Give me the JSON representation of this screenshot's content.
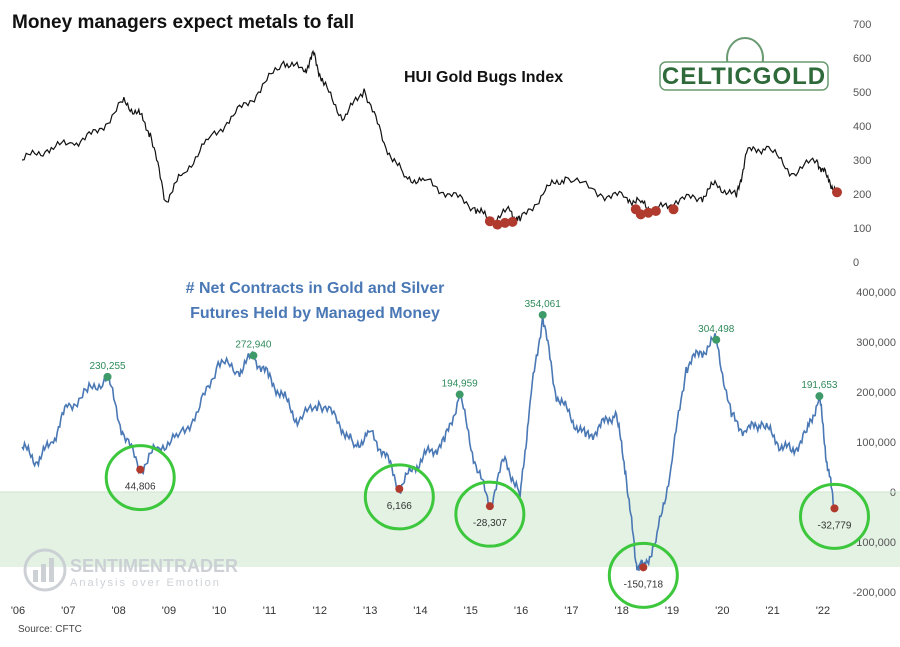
{
  "header": {
    "title": "Money managers expect metals to fall",
    "source": "Source: CFTC"
  },
  "logo": {
    "text": "CELTICGOLD"
  },
  "watermark": {
    "main": "SENTIMENTRADER",
    "sub": "Analysis over Emotion"
  },
  "colors": {
    "hui_line": "#111111",
    "net_line": "#4a78b5",
    "high_marker": "#3f9a6a",
    "low_marker": "#b03a2e",
    "highlight_ring": "#3cc73c",
    "band": "#e3f2e3"
  },
  "chart_data": [
    {
      "type": "line",
      "title": "HUI Gold Bugs Index",
      "ylim": [
        0,
        700
      ],
      "yticks": [
        "700",
        "600",
        "500",
        "400",
        "300",
        "200",
        "100",
        "0"
      ],
      "x": [
        2006.0,
        2006.5,
        2007.0,
        2007.5,
        2008.0,
        2008.3,
        2008.55,
        2008.85,
        2009.2,
        2009.7,
        2010.2,
        2010.7,
        2011.2,
        2011.6,
        2011.8,
        2012.0,
        2012.4,
        2012.8,
        2013.2,
        2013.6,
        2014.0,
        2014.5,
        2015.0,
        2015.3,
        2015.7,
        2015.9,
        2016.4,
        2016.8,
        2017.5,
        2018.0,
        2018.3,
        2018.6,
        2019.0,
        2019.5,
        2019.8,
        2020.2,
        2020.4,
        2020.8,
        2021.3,
        2021.8,
        2022.0,
        2022.2
      ],
      "values": [
        300,
        330,
        350,
        380,
        470,
        440,
        380,
        180,
        260,
        360,
        430,
        500,
        590,
        560,
        610,
        520,
        420,
        510,
        350,
        250,
        240,
        200,
        160,
        120,
        150,
        120,
        210,
        250,
        200,
        190,
        175,
        150,
        180,
        190,
        230,
        190,
        320,
        340,
        260,
        300,
        250,
        205
      ],
      "highlight_points": [
        {
          "x": 2015.3,
          "y": 120
        },
        {
          "x": 2015.45,
          "y": 110
        },
        {
          "x": 2015.6,
          "y": 115
        },
        {
          "x": 2015.75,
          "y": 118
        },
        {
          "x": 2018.2,
          "y": 155
        },
        {
          "x": 2018.3,
          "y": 140
        },
        {
          "x": 2018.45,
          "y": 145
        },
        {
          "x": 2018.6,
          "y": 150
        },
        {
          "x": 2018.95,
          "y": 155
        },
        {
          "x": 2022.2,
          "y": 205
        }
      ]
    },
    {
      "type": "line",
      "title": "# Net Contracts in Gold and Silver\nFutures Held by Managed Money",
      "ylim": [
        -200000,
        400000
      ],
      "yticks": [
        "400,000",
        "300,000",
        "200,000",
        "100,000",
        "0",
        "-100,000",
        "-200,000"
      ],
      "x_tick_labels": [
        "'06",
        "'07",
        "'08",
        "'09",
        "'10",
        "'11",
        "'12",
        "'13",
        "'14",
        "'15",
        "'16",
        "'17",
        "'18",
        "'19",
        "'20",
        "'21",
        "'22"
      ],
      "x": [
        2006.0,
        2006.3,
        2006.6,
        2006.9,
        2007.3,
        2007.7,
        2008.0,
        2008.35,
        2008.7,
        2009.1,
        2009.5,
        2009.9,
        2010.3,
        2010.6,
        2010.9,
        2011.2,
        2011.5,
        2011.9,
        2012.3,
        2012.6,
        2012.9,
        2013.2,
        2013.5,
        2013.8,
        2014.1,
        2014.4,
        2014.7,
        2015.0,
        2015.3,
        2015.6,
        2015.9,
        2016.1,
        2016.35,
        2016.6,
        2016.9,
        2017.2,
        2017.5,
        2017.8,
        2018.0,
        2018.2,
        2018.35,
        2018.6,
        2018.9,
        2019.2,
        2019.5,
        2019.8,
        2020.1,
        2020.4,
        2020.7,
        2021.0,
        2021.3,
        2021.6,
        2021.85,
        2022.0,
        2022.15
      ],
      "values": [
        90000,
        60000,
        100000,
        170000,
        200000,
        230255,
        120000,
        44806,
        90000,
        110000,
        160000,
        260000,
        240000,
        272940,
        230000,
        190000,
        140000,
        180000,
        140000,
        90000,
        120000,
        80000,
        6166,
        50000,
        80000,
        100000,
        194959,
        60000,
        -28307,
        70000,
        -10000,
        180000,
        354061,
        200000,
        150000,
        110000,
        130000,
        160000,
        40000,
        -140000,
        -150718,
        -100000,
        50000,
        250000,
        280000,
        304498,
        150000,
        120000,
        140000,
        100000,
        80000,
        120000,
        191653,
        60000,
        -32779
      ],
      "annotations": [
        {
          "x": 2007.7,
          "y": 230255,
          "label": "230,255",
          "kind": "high"
        },
        {
          "x": 2010.6,
          "y": 272940,
          "label": "272,940",
          "kind": "high"
        },
        {
          "x": 2014.7,
          "y": 194959,
          "label": "194,959",
          "kind": "high"
        },
        {
          "x": 2016.35,
          "y": 354061,
          "label": "354,061",
          "kind": "high"
        },
        {
          "x": 2019.8,
          "y": 304498,
          "label": "304,498",
          "kind": "high"
        },
        {
          "x": 2021.85,
          "y": 191653,
          "label": "191,653",
          "kind": "high"
        },
        {
          "x": 2008.35,
          "y": 44806,
          "label": "44,806",
          "kind": "low"
        },
        {
          "x": 2013.5,
          "y": 6166,
          "label": "6,166",
          "kind": "low"
        },
        {
          "x": 2015.3,
          "y": -28307,
          "label": "-28,307",
          "kind": "low"
        },
        {
          "x": 2018.35,
          "y": -150718,
          "label": "-150,718",
          "kind": "low"
        },
        {
          "x": 2022.15,
          "y": -32779,
          "label": "-32,779",
          "kind": "low"
        }
      ],
      "shaded_band": [
        -150000,
        0
      ]
    }
  ]
}
